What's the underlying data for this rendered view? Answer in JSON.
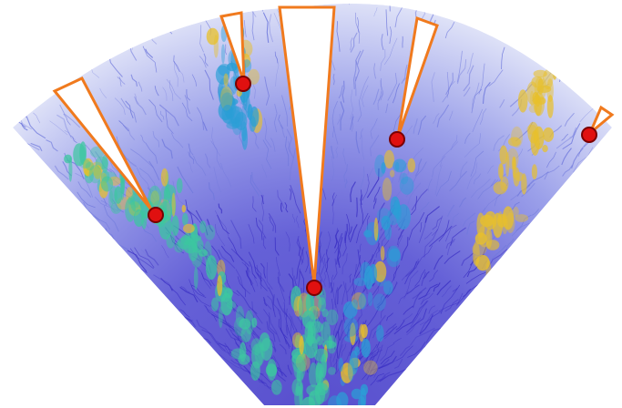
{
  "figure": {
    "kind": "radial flow-field visualization (sector/fan shape)",
    "colors": {
      "background": "#ffffff",
      "streamline_low": "#3a2fc4",
      "streamline_mid": "#2a9fd6",
      "streamline_high": "#3cc7a0",
      "streamline_peak": "#e8c02a",
      "wedge_outline": "#f07a1e",
      "marker_fill": "#e01010",
      "marker_stroke": "#7a0000"
    },
    "wedges": [
      {
        "id": "wedge-far-left"
      },
      {
        "id": "wedge-left"
      },
      {
        "id": "wedge-center"
      },
      {
        "id": "wedge-right"
      },
      {
        "id": "wedge-far-right"
      }
    ],
    "markers": [
      {
        "id": "marker-far-left"
      },
      {
        "id": "marker-left"
      },
      {
        "id": "marker-center"
      },
      {
        "id": "marker-right"
      },
      {
        "id": "marker-far-right"
      }
    ]
  }
}
